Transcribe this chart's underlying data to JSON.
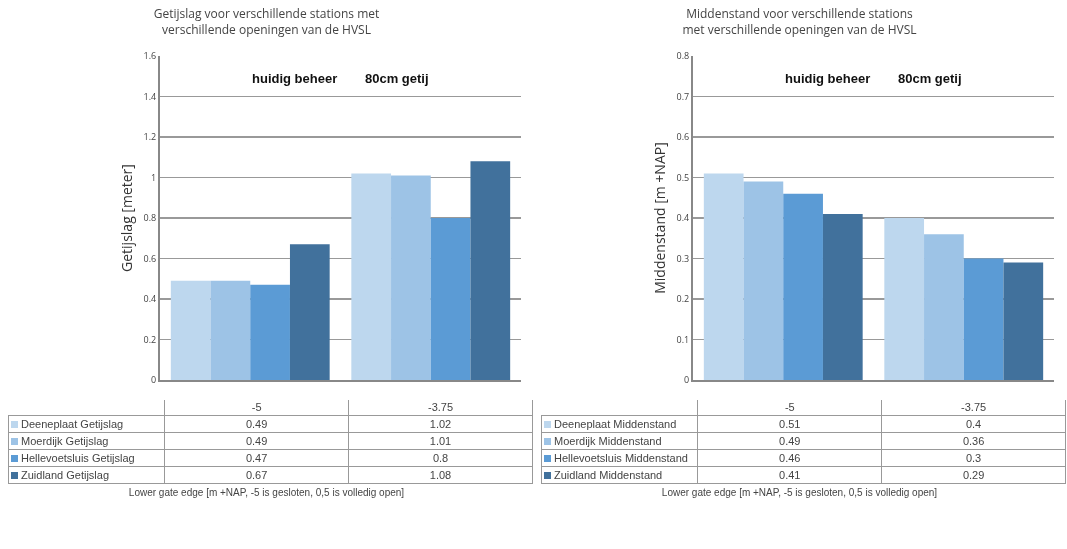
{
  "chart_data": [
    {
      "type": "bar",
      "title": "Getijslag voor verschillende stations met\nverschillende openingen van de HVSL",
      "xlabel": "Lower gate edge [m +NAP,  -5 is gesloten, 0,5 is volledig open]",
      "ylabel": "Getijslag [meter]",
      "categories": [
        "-5",
        "-3.75"
      ],
      "series": [
        {
          "name": "Deeneplaat Getijslag",
          "color": "#bdd7ee",
          "values": [
            0.49,
            1.02
          ]
        },
        {
          "name": "Moerdijk Getijslag",
          "color": "#9dc3e6",
          "values": [
            0.49,
            1.01
          ]
        },
        {
          "name": "Hellevoetsluis Getijslag",
          "color": "#5b9bd5",
          "values": [
            0.47,
            0.8
          ]
        },
        {
          "name": "Zuidland Getijslag",
          "color": "#41719c",
          "values": [
            0.67,
            1.08
          ]
        }
      ],
      "ylim": [
        0,
        1.6
      ],
      "yticks": [
        0,
        0.2,
        0.4,
        0.6,
        0.8,
        1,
        1.2,
        1.4,
        1.6
      ],
      "grid": "y",
      "legend": "bottom",
      "data_labels": true,
      "annotations": [
        "huidig beheer",
        "80cm getij"
      ]
    },
    {
      "type": "bar",
      "title": "Middenstand voor verschillende stations\nmet verschillende openingen van de HVSL",
      "xlabel": "Lower gate edge [m +NAP,  -5 is gesloten, 0,5 is volledig open]",
      "ylabel": "Middenstand [m +NAP]",
      "categories": [
        "-5",
        "-3.75"
      ],
      "series": [
        {
          "name": "Deeneplaat Middenstand",
          "color": "#bdd7ee",
          "values": [
            0.51,
            0.4
          ]
        },
        {
          "name": "Moerdijk Middenstand",
          "color": "#9dc3e6",
          "values": [
            0.49,
            0.36
          ]
        },
        {
          "name": "Hellevoetsluis Middenstand",
          "color": "#5b9bd5",
          "values": [
            0.46,
            0.3
          ]
        },
        {
          "name": "Zuidland Middenstand",
          "color": "#41719c",
          "values": [
            0.41,
            0.29
          ]
        }
      ],
      "ylim": [
        0,
        0.8
      ],
      "yticks": [
        0,
        0.1,
        0.2,
        0.3,
        0.4,
        0.5,
        0.6,
        0.7,
        0.8
      ],
      "grid": "y",
      "legend": "bottom",
      "data_labels": true,
      "annotations": [
        "huidig beheer",
        "80cm getij"
      ]
    }
  ]
}
